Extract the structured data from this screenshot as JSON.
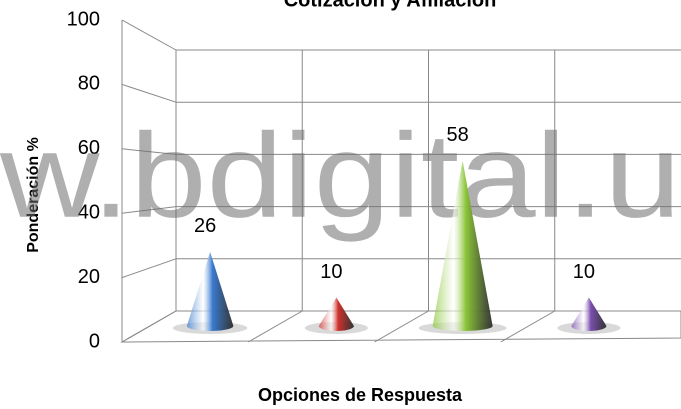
{
  "chart_data": {
    "type": "cone",
    "title": "Cotización y Afiliación",
    "categories": [
      null,
      null,
      null,
      null
    ],
    "series": [
      {
        "name": null,
        "values": [
          26,
          10,
          58,
          10
        ],
        "colors": [
          "#3a7bd0",
          "#d0312d",
          "#8cc63a",
          "#7b4fb0"
        ]
      }
    ],
    "ylim": [
      0,
      100
    ],
    "yticks": [
      0,
      20,
      40,
      60,
      80,
      100
    ],
    "grid": true,
    "y_label": "Ponderación %",
    "x_label": "Opciones de Respuesta",
    "watermark": "w.bdigital.u"
  }
}
